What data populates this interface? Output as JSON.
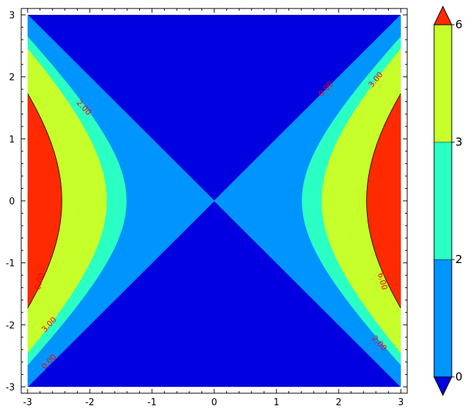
{
  "chart_data": {
    "type": "contour",
    "title": "",
    "xlabel": "",
    "ylabel": "",
    "xlim": [
      -3,
      3
    ],
    "ylim": [
      -3,
      3
    ],
    "x_ticks": [
      "-3",
      "-2",
      "-1",
      "0",
      "1",
      "2",
      "3"
    ],
    "y_ticks": [
      "3",
      "2",
      "1",
      "0",
      "-1",
      "-2",
      "-3"
    ],
    "function": "x^2 - y^2",
    "levels": [
      0,
      2,
      3,
      6
    ],
    "regions": [
      {
        "range": "below 0",
        "color": "#0000e0"
      },
      {
        "range": "0 to 2",
        "color": "#0094ff"
      },
      {
        "range": "2 to 3",
        "color": "#2affc4"
      },
      {
        "range": "3 to 6",
        "color": "#c6ff2a"
      },
      {
        "range": "above 6",
        "color": "#ff2a00"
      }
    ],
    "contour_labels": [
      "0.00",
      "2.00",
      "3.00",
      "6.00"
    ],
    "colorbar": {
      "ticks": [
        "0",
        "2",
        "3",
        "6"
      ],
      "extend": "both"
    },
    "label_color": "#ff0000"
  }
}
